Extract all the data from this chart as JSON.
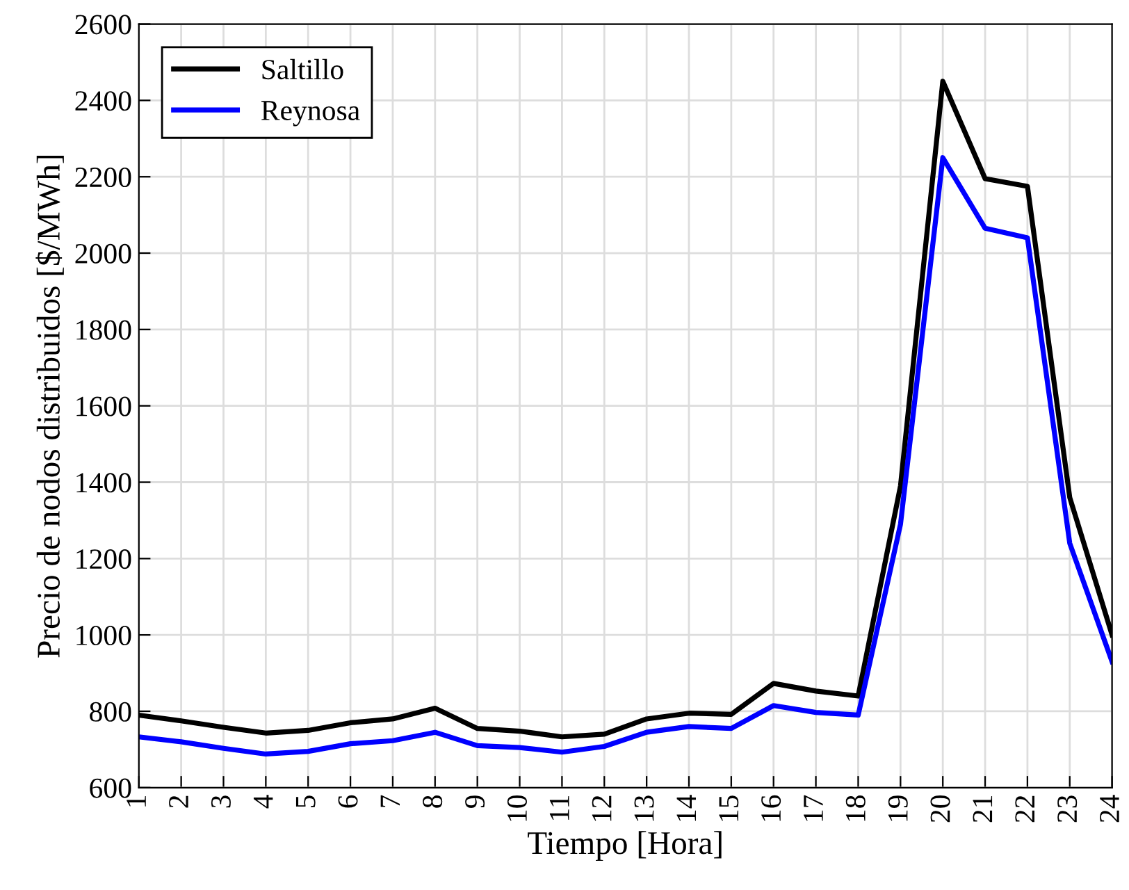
{
  "chart_data": {
    "type": "line",
    "xlabel": "Tiempo [Hora]",
    "ylabel": "Precio de nodos distribuidos [$/MWh]",
    "x": [
      1,
      2,
      3,
      4,
      5,
      6,
      7,
      8,
      9,
      10,
      11,
      12,
      13,
      14,
      15,
      16,
      17,
      18,
      19,
      20,
      21,
      22,
      23,
      24
    ],
    "series": [
      {
        "name": "Saltillo",
        "color": "#000000",
        "values": [
          790,
          775,
          758,
          743,
          750,
          770,
          780,
          808,
          755,
          748,
          733,
          740,
          780,
          795,
          792,
          873,
          853,
          840,
          1390,
          2450,
          2195,
          2175,
          1360,
          1000
        ]
      },
      {
        "name": "Reynosa",
        "color": "#0000ff",
        "values": [
          733,
          720,
          703,
          688,
          695,
          715,
          723,
          745,
          710,
          705,
          693,
          708,
          745,
          760,
          755,
          815,
          797,
          790,
          1290,
          2250,
          2065,
          2040,
          1240,
          930
        ]
      }
    ],
    "xlim": [
      1,
      24
    ],
    "xticks": [
      1,
      2,
      3,
      4,
      5,
      6,
      7,
      8,
      9,
      10,
      11,
      12,
      13,
      14,
      15,
      16,
      17,
      18,
      19,
      20,
      21,
      22,
      23,
      24
    ],
    "ylim": [
      600,
      2600
    ],
    "yticks": [
      600,
      800,
      1000,
      1200,
      1400,
      1600,
      1800,
      2000,
      2200,
      2400,
      2600
    ],
    "grid": true,
    "legend": "top left",
    "marker": "none",
    "line_style": "solid"
  }
}
